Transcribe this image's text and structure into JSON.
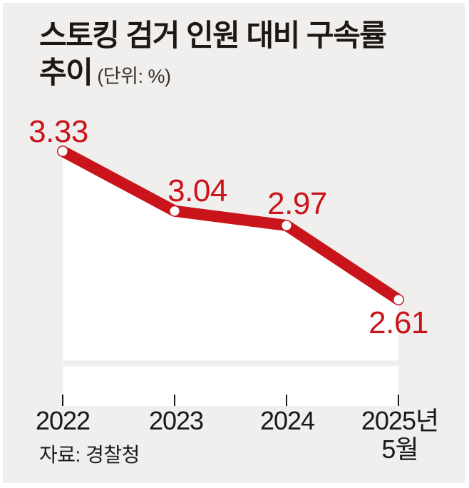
{
  "header": {
    "title_line1": "스토킹 검거 인원 대비 구속률",
    "title_line2": "추이",
    "unit": "(단위: %)"
  },
  "chart_data": {
    "type": "line",
    "title": "스토킹 검거 인원 대비 구속률 추이",
    "unit": "%",
    "categories": [
      "2022",
      "2023",
      "2024",
      "2025년 5월"
    ],
    "values": [
      3.33,
      3.04,
      2.97,
      2.61
    ],
    "point_labels": [
      "3.33",
      "3.04",
      "2.97",
      "2.61"
    ],
    "xlabel": "",
    "ylabel": "",
    "ylim": [
      2.1,
      3.6
    ],
    "legend": false,
    "grid": "one horizontal gridline near bottom of plot",
    "line_color": "#c9141b",
    "label_color": "#c9141b",
    "marker": "white-dot",
    "area_fill": "#ffffff",
    "background": "#f0efed",
    "tick_color": "#1a1a1a"
  },
  "x_axis": {
    "labels": [
      {
        "line1": "2022",
        "line2": ""
      },
      {
        "line1": "2023",
        "line2": ""
      },
      {
        "line1": "2024",
        "line2": ""
      },
      {
        "line1": "2025년",
        "line2": "5월"
      }
    ]
  },
  "footer": {
    "source": "자료: 경찰청"
  }
}
